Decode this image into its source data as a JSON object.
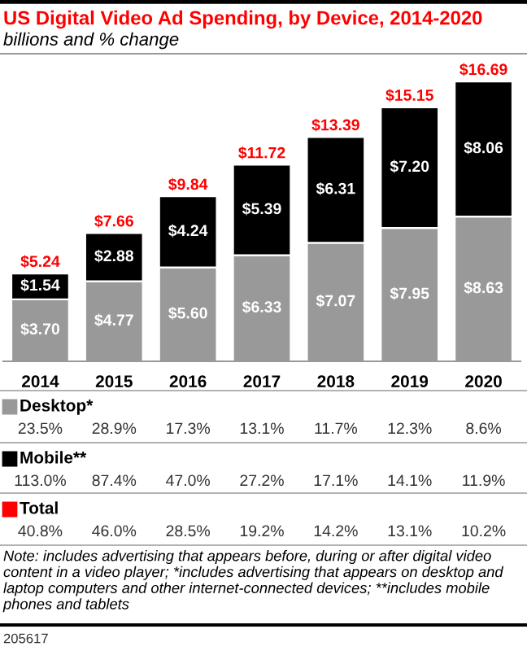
{
  "chart_data": {
    "type": "bar",
    "stacked": true,
    "legend": "bottom",
    "grid": false,
    "title": "US Digital Video Ad Spending, by Device, 2014-2020",
    "subtitle": "billions and % change",
    "categories": [
      "2014",
      "2015",
      "2016",
      "2017",
      "2018",
      "2019",
      "2020"
    ],
    "tick_labels": "x",
    "series": [
      {
        "name": "Desktop*",
        "color": "#999999",
        "values": [
          3.7,
          4.77,
          5.6,
          6.33,
          7.07,
          7.95,
          8.63
        ],
        "value_labels": [
          "$3.70",
          "$4.77",
          "$5.60",
          "$6.33",
          "$7.07",
          "$7.95",
          "$8.63"
        ]
      },
      {
        "name": "Mobile**",
        "color": "#000000",
        "values": [
          1.54,
          2.88,
          4.24,
          5.39,
          6.31,
          7.2,
          8.06
        ],
        "value_labels": [
          "$1.54",
          "$2.88",
          "$4.24",
          "$5.39",
          "$6.31",
          "$7.20",
          "$8.06"
        ]
      }
    ],
    "totals": [
      "$5.24",
      "$7.66",
      "$9.84",
      "$11.72",
      "$13.39",
      "$15.15",
      "$16.69"
    ],
    "annotations": [
      "23.5% 28.9% 17.3% 13.1% 11.7% 12.3% 8.6%",
      "113.0% 87.4% 47.0% 27.2% 17.1% 14.1% 11.9%",
      "Total",
      "40.8% 46.0% 28.5% 19.2% 14.2% 13.1% 10.2%",
      "Note: includes advertising that appears before, during or after digital video content in a video player; *includes advertising that appears on desktop and laptop computers and other internet-connected devices; **includes mobile phones and tablets",
      "205617"
    ]
  }
}
